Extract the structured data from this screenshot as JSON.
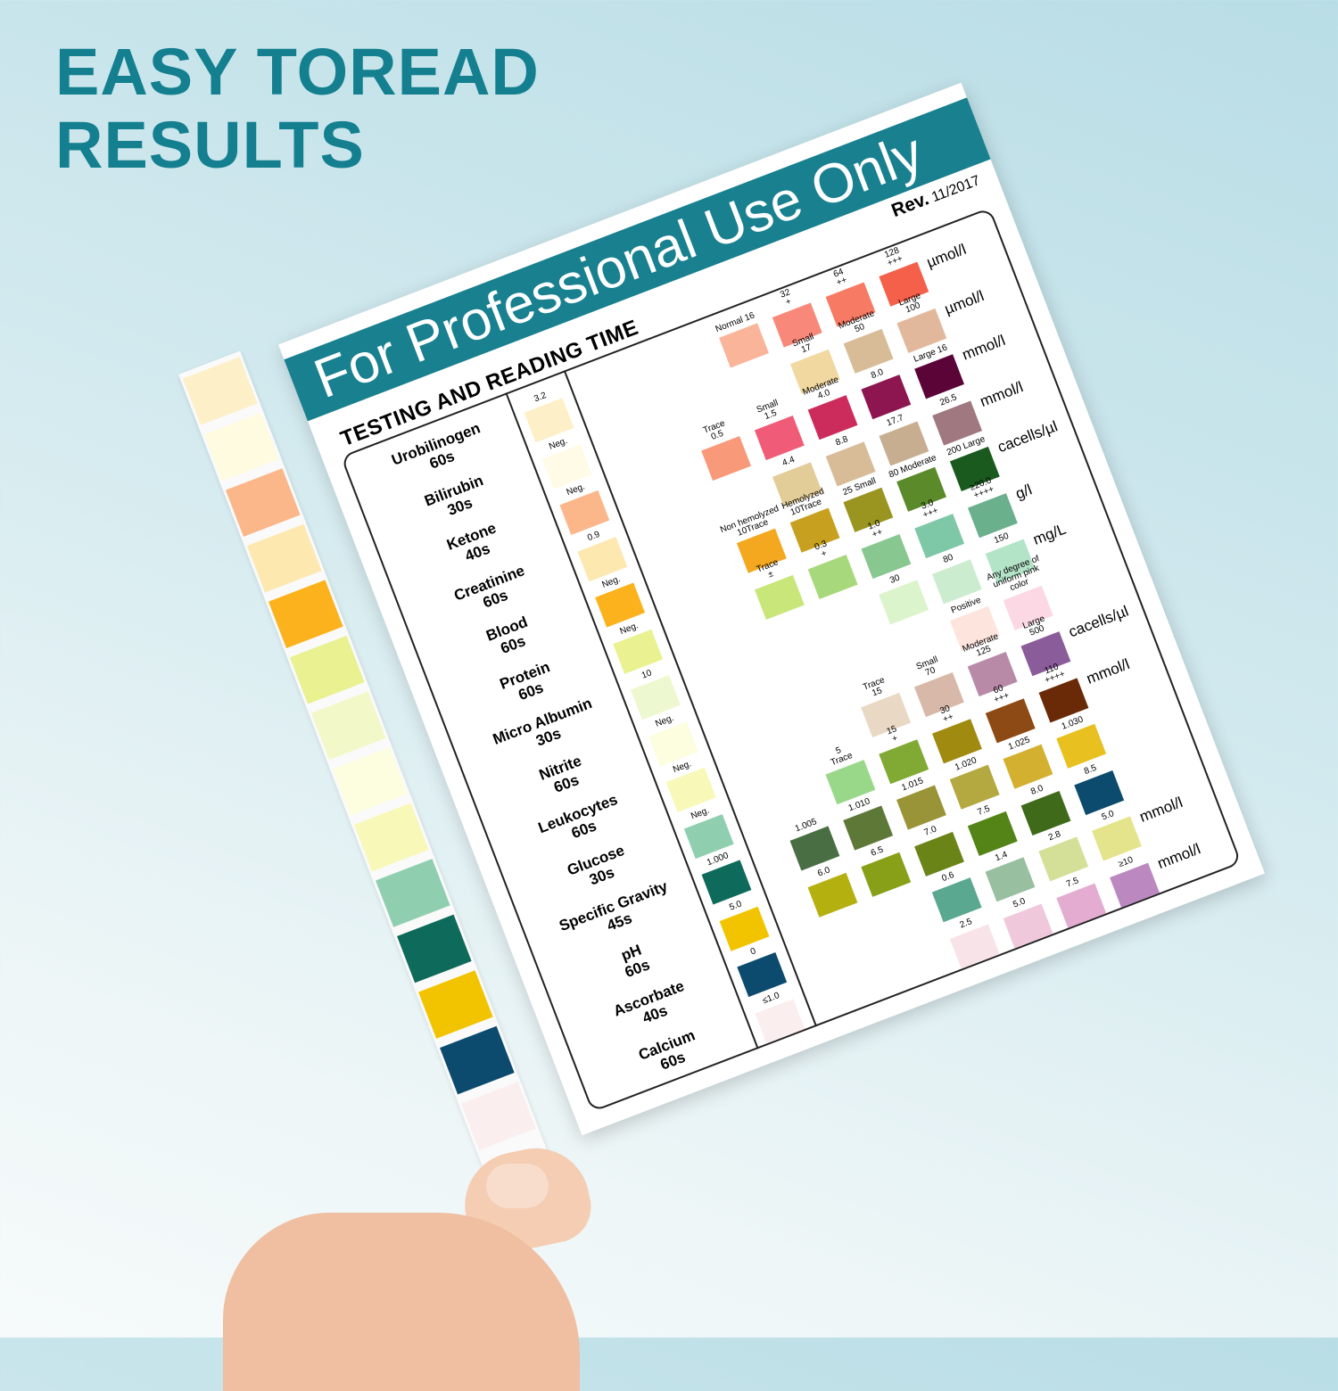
{
  "headline": {
    "line1": "EASY TOREAD",
    "line2": "RESULTS",
    "color": "#137f8f"
  },
  "card": {
    "header": "For Professional Use Only",
    "header_color": "#18808f",
    "rev_label": "Rev.",
    "rev_date": "11/2017",
    "subheading": "TESTING AND READING TIME",
    "rows": [
      {
        "name": "Urobilinogen\n60s",
        "neg": {
          "label": "3.2",
          "color": "#fdf0c8"
        },
        "unit": "µmol/l",
        "refs": [
          {
            "label": "Normal 16",
            "color": "#f9b49a"
          },
          {
            "label": "32\n+",
            "color": "#f7887a"
          },
          {
            "label": "64\n++",
            "color": "#f77a64"
          },
          {
            "label": "128\n+++",
            "color": "#f4604a"
          }
        ]
      },
      {
        "name": "Bilirubin\n30s",
        "neg": {
          "label": "Neg.",
          "color": "#fffbe6"
        },
        "unit": "µmol/l",
        "refs": [
          {
            "label": "Small\n17",
            "color": "#f0d8a0"
          },
          {
            "label": "Moderate\n50",
            "color": "#d8bc98"
          },
          {
            "label": "Large\n100",
            "color": "#e2b89c"
          }
        ]
      },
      {
        "name": "Ketone\n40s",
        "neg": {
          "label": "Neg.",
          "color": "#fbb68a"
        },
        "unit": "mmol/l",
        "refs": [
          {
            "label": "Trace\n0.5",
            "color": "#f89a7a"
          },
          {
            "label": "Small\n1.5",
            "color": "#f05c78"
          },
          {
            "label": "Moderate\n4.0",
            "color": "#cc2c5c"
          },
          {
            "label": "8.0",
            "color": "#8e1650"
          },
          {
            "label": "Large 16",
            "color": "#5a0438"
          }
        ]
      },
      {
        "name": "Creatinine\n60s",
        "neg": {
          "label": "0.9",
          "color": "#fde8b0"
        },
        "unit": "mmol/l",
        "refs": [
          {
            "label": "4.4",
            "color": "#e2cc98"
          },
          {
            "label": "8.8",
            "color": "#d8bc98"
          },
          {
            "label": "17.7",
            "color": "#c8ae90"
          },
          {
            "label": "26.5",
            "color": "#a07880"
          }
        ]
      },
      {
        "name": "Blood\n60s",
        "neg": {
          "label": "Neg.",
          "color": "#fbb21c"
        },
        "unit": "cacells/µl",
        "refs": [
          {
            "label": "Non hemolyzed\n10Trace",
            "color": "#f4a820"
          },
          {
            "label": "Hemolyzed\n10Trace",
            "color": "#c8a020"
          },
          {
            "label": "25 Small",
            "color": "#9a9420"
          },
          {
            "label": "80 Moderate",
            "color": "#5a8a2a"
          },
          {
            "label": "200 Large",
            "color": "#1a5a1e"
          }
        ]
      },
      {
        "name": "Protein\n60s",
        "neg": {
          "label": "Neg.",
          "color": "#e9f190"
        },
        "unit": "g/l",
        "refs": [
          {
            "label": "Trace\n±",
            "color": "#c8e67a"
          },
          {
            "label": "0.3\n+",
            "color": "#a8d87c"
          },
          {
            "label": "1.0\n++",
            "color": "#88c890"
          },
          {
            "label": "3.0\n+++",
            "color": "#7ec8a8"
          },
          {
            "label": "≥20.0\n++++",
            "color": "#6ab08c"
          }
        ]
      },
      {
        "name": "Micro Albumin\n30s",
        "neg": {
          "label": "10",
          "color": "#eef8d0"
        },
        "unit": "mg/L",
        "refs": [
          {
            "label": "30",
            "color": "#dcf4cc"
          },
          {
            "label": "80",
            "color": "#ccecd0"
          },
          {
            "label": "150",
            "color": "#b4e4c8"
          }
        ]
      },
      {
        "name": "Nitrite\n60s",
        "neg": {
          "label": "Neg.",
          "color": "#fdfde0"
        },
        "unit": "",
        "refs": [
          {
            "label": "Positive",
            "color": "#fde4dc"
          },
          {
            "label": "Any degree of\nuniform pink color",
            "color": "#fbd8e4"
          }
        ]
      },
      {
        "name": "Leukocytes\n60s",
        "neg": {
          "label": "Neg.",
          "color": "#f8f8b8"
        },
        "unit": "cacells/µl",
        "refs": [
          {
            "label": "Trace\n15",
            "color": "#e8d8c4"
          },
          {
            "label": "Small\n70",
            "color": "#d8b8a8"
          },
          {
            "label": "Moderate\n125",
            "color": "#b88aa8"
          },
          {
            "label": "Large\n500",
            "color": "#8a5c9a"
          }
        ]
      },
      {
        "name": "Glucose\n30s",
        "neg": {
          "label": "Neg.",
          "color": "#8fcfb0"
        },
        "unit": "mmol/l",
        "refs": [
          {
            "label": "5\nTrace",
            "color": "#98d888"
          },
          {
            "label": "15\n+",
            "color": "#80aa34"
          },
          {
            "label": "30\n++",
            "color": "#a08a10"
          },
          {
            "label": "60\n+++",
            "color": "#8e4a14"
          },
          {
            "label": "110\n++++",
            "color": "#6a2a08"
          }
        ]
      },
      {
        "name": "Specific Gravity\n45s",
        "neg": {
          "label": "1.000",
          "color": "#0e6a5a"
        },
        "unit": "",
        "refs": [
          {
            "label": "1.005",
            "color": "#4a6e44"
          },
          {
            "label": "1.010",
            "color": "#5e7838"
          },
          {
            "label": "1.015",
            "color": "#9a9438"
          },
          {
            "label": "1.020",
            "color": "#b4a840"
          },
          {
            "label": "1.025",
            "color": "#d4b030"
          },
          {
            "label": "1.030",
            "color": "#e8c020"
          }
        ]
      },
      {
        "name": "pH\n60s",
        "neg": {
          "label": "5.0",
          "color": "#f2c400"
        },
        "unit": "",
        "refs": [
          {
            "label": "6.0",
            "color": "#b4b010"
          },
          {
            "label": "6.5",
            "color": "#88a018"
          },
          {
            "label": "7.0",
            "color": "#6a8418"
          },
          {
            "label": "7.5",
            "color": "#548418"
          },
          {
            "label": "8.0",
            "color": "#3e6a1a"
          },
          {
            "label": "8.5",
            "color": "#0c4a6e"
          }
        ]
      },
      {
        "name": "Ascorbate\n40s",
        "neg": {
          "label": "0",
          "color": "#0c4a6e"
        },
        "unit": "mmol/l",
        "refs": [
          {
            "label": "0.6",
            "color": "#5aa890"
          },
          {
            "label": "1.4",
            "color": "#98c0a0"
          },
          {
            "label": "2.8",
            "color": "#d4e098"
          },
          {
            "label": "5.0",
            "color": "#e4e48c"
          }
        ]
      },
      {
        "name": "Calcium\n60s",
        "neg": {
          "label": "≤1.0",
          "color": "#fbeeee"
        },
        "unit": "mmol/l",
        "refs": [
          {
            "label": "2.5",
            "color": "#f8e4e8"
          },
          {
            "label": "5.0",
            "color": "#f0c8dc"
          },
          {
            "label": "7.5",
            "color": "#e4acd0"
          },
          {
            "label": "≥10",
            "color": "#bc88c0"
          }
        ]
      }
    ]
  },
  "strip_pads": [
    "#fdf0c8",
    "#fffbe0",
    "#fbb68a",
    "#fde8b0",
    "#fbb21c",
    "#e9f190",
    "#f3f8c8",
    "#fdfde0",
    "#f8f8b8",
    "#8fcfb0",
    "#0e6a5a",
    "#f2c400",
    "#0c4a6e",
    "#fbeeee"
  ]
}
